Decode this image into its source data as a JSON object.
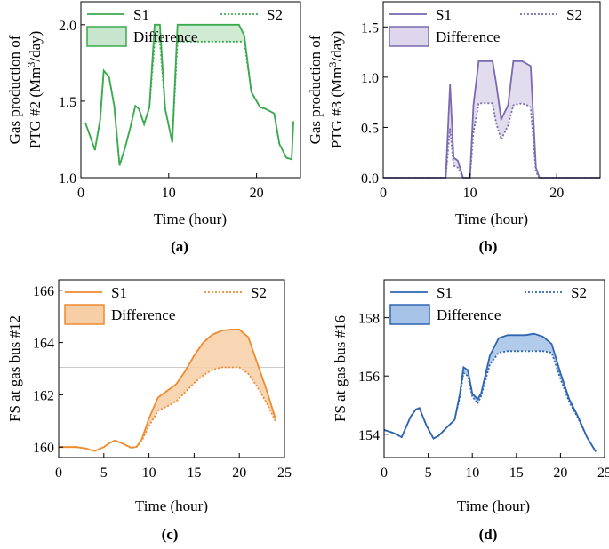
{
  "chart_data": [
    {
      "type": "line",
      "panel": "(a)",
      "ylabel_line1": "Gas production of",
      "ylabel_line2_pre": "PTG #2 (Mm",
      "ylabel_line2_sup": "3",
      "ylabel_line2_post": "/day)",
      "xlabel": "Time (hour)",
      "xlim": [
        0,
        25
      ],
      "ylim": [
        1.0,
        2.15
      ],
      "xticks": [
        0,
        10,
        20
      ],
      "yticks": [
        1.0,
        1.5,
        2.0
      ],
      "ytick_labels": [
        "1.0",
        "1.5",
        "2.0"
      ],
      "color": "#3aaa4e",
      "fill": "#c8e6cd",
      "legend": {
        "s1": "S1",
        "s2": "S2",
        "diff": "Difference"
      },
      "series": [
        {
          "name": "S1",
          "x": [
            0.5,
            1,
            1.6,
            2.2,
            2.6,
            3.2,
            3.8,
            4.4,
            5,
            5.6,
            6.2,
            6.6,
            7.2,
            7.8,
            8.4,
            9,
            9.6,
            10.4,
            11,
            12,
            13,
            14,
            15,
            16,
            17,
            18,
            18.6,
            19.4,
            20.4,
            21,
            22,
            22.6,
            23.4,
            24
          ],
          "y": [
            1.36,
            1.28,
            1.18,
            1.38,
            1.7,
            1.66,
            1.47,
            1.08,
            1.19,
            1.32,
            1.47,
            1.45,
            1.35,
            1.46,
            2.0,
            2.0,
            1.45,
            1.23,
            2.0,
            2.0,
            2.0,
            2.0,
            2.0,
            2.0,
            2.0,
            2.0,
            1.93,
            1.56,
            1.46,
            1.45,
            1.42,
            1.22,
            1.13,
            1.12
          ]
        },
        {
          "name": "S2",
          "x": [
            0.5,
            1,
            1.6,
            2.2,
            2.6,
            3.2,
            3.8,
            4.4,
            5,
            5.6,
            6.2,
            6.6,
            7.2,
            7.8,
            8.4,
            9,
            9.6,
            10.4,
            11,
            12,
            13,
            14,
            15,
            16,
            17,
            18,
            18.6,
            19.4,
            20.4,
            21,
            22,
            22.6,
            23.4,
            24
          ],
          "y": [
            1.36,
            1.28,
            1.18,
            1.38,
            1.7,
            1.66,
            1.47,
            1.08,
            1.19,
            1.32,
            1.47,
            1.45,
            1.35,
            1.46,
            1.89,
            1.89,
            1.45,
            1.23,
            1.89,
            1.89,
            1.89,
            1.89,
            1.89,
            1.89,
            1.89,
            1.89,
            1.89,
            1.56,
            1.46,
            1.45,
            1.42,
            1.22,
            1.13,
            1.12
          ]
        }
      ],
      "tail": {
        "x": [
          23.4,
          24.2
        ],
        "y": [
          1.12,
          1.37
        ]
      }
    },
    {
      "type": "line",
      "panel": "(b)",
      "ylabel_line1": "Gas production of",
      "ylabel_line2_pre": "PTG #3 (Mm",
      "ylabel_line2_sup": "3",
      "ylabel_line2_post": "/day)",
      "xlabel": "Time (hour)",
      "xlim": [
        0,
        25
      ],
      "ylim": [
        0.0,
        1.75
      ],
      "xticks": [
        0,
        10,
        20
      ],
      "yticks": [
        0.0,
        0.5,
        1.0,
        1.5
      ],
      "ytick_labels": [
        "0.0",
        "0.5",
        "1.0",
        "1.5"
      ],
      "color": "#7a6aaf",
      "fill": "#ddd6ec",
      "legend": {
        "s1": "S1",
        "s2": "S2",
        "diff": "Difference"
      },
      "series": [
        {
          "name": "S1",
          "x": [
            0,
            7.2,
            7.7,
            8.1,
            8.6,
            9.2,
            10,
            10.4,
            11,
            12,
            12.6,
            13,
            13.6,
            14.4,
            15,
            16,
            16.6,
            17,
            17.6,
            18,
            25
          ],
          "y": [
            0,
            0,
            0.93,
            0.2,
            0.17,
            0,
            0,
            0.72,
            1.16,
            1.16,
            1.16,
            0.95,
            0.58,
            0.72,
            1.16,
            1.16,
            1.13,
            1.11,
            0.1,
            0,
            0
          ]
        },
        {
          "name": "S2",
          "x": [
            0,
            7.2,
            7.7,
            8.1,
            8.6,
            9.2,
            10,
            10.4,
            11,
            12,
            12.6,
            13,
            13.6,
            14.4,
            15,
            16,
            16.6,
            17,
            17.6,
            18,
            25
          ],
          "y": [
            0,
            0,
            0.49,
            0.12,
            0.1,
            0,
            0,
            0.45,
            0.74,
            0.74,
            0.74,
            0.55,
            0.38,
            0.52,
            0.72,
            0.74,
            0.72,
            0.7,
            0.06,
            0,
            0
          ]
        }
      ]
    },
    {
      "type": "line",
      "panel": "(c)",
      "ylabel_line1": "FS at gas bus #12",
      "xlabel": "Time (hour)",
      "xlim": [
        0,
        25
      ],
      "ylim": [
        159.6,
        166.4
      ],
      "xticks": [
        0,
        5,
        10,
        15,
        20,
        25
      ],
      "yticks": [
        160,
        162,
        164,
        166
      ],
      "ytick_labels": [
        "160",
        "162",
        "164",
        "166"
      ],
      "color": "#ee8a2f",
      "fill": "#f7cfa6",
      "legend": {
        "s1": "S1",
        "s2": "S2",
        "diff": "Difference"
      },
      "series": [
        {
          "name": "S1",
          "x": [
            0,
            1,
            2,
            3,
            4,
            5,
            5.6,
            6.2,
            7,
            8,
            8.6,
            9.2,
            10,
            11,
            12,
            13,
            14,
            15,
            16,
            17,
            18,
            19,
            20,
            21,
            22,
            23,
            24
          ],
          "y": [
            160.0,
            160.0,
            160.0,
            159.95,
            159.85,
            160.0,
            160.15,
            160.25,
            160.15,
            159.98,
            160.0,
            160.3,
            161.1,
            161.9,
            162.15,
            162.4,
            162.9,
            163.5,
            164.0,
            164.3,
            164.45,
            164.5,
            164.5,
            164.2,
            163.2,
            162.2,
            161.1
          ]
        },
        {
          "name": "S2",
          "x": [
            0,
            1,
            2,
            3,
            4,
            5,
            5.6,
            6.2,
            7,
            8,
            8.6,
            9.2,
            10,
            11,
            12,
            13,
            14,
            15,
            16,
            17,
            18,
            19,
            20,
            21,
            22,
            23,
            24
          ],
          "y": [
            160.0,
            160.0,
            160.0,
            159.95,
            159.85,
            160.0,
            160.15,
            160.25,
            160.15,
            159.98,
            160.0,
            160.25,
            160.8,
            161.4,
            161.55,
            161.75,
            162.1,
            162.45,
            162.75,
            162.95,
            163.05,
            163.05,
            163.05,
            162.8,
            162.3,
            161.7,
            161.0
          ]
        }
      ],
      "ref_y": 163.05
    },
    {
      "type": "line",
      "panel": "(d)",
      "ylabel_line1": "FS at gas bus #16",
      "xlabel": "Time (hour)",
      "xlim": [
        0,
        25
      ],
      "ylim": [
        153.2,
        159.3
      ],
      "xticks": [
        0,
        5,
        10,
        15,
        20,
        25
      ],
      "yticks": [
        154,
        156,
        158
      ],
      "ytick_labels": [
        "154",
        "156",
        "158"
      ],
      "color": "#2e64b0",
      "fill": "#a6c2e6",
      "legend": {
        "s1": "S1",
        "s2": "S2",
        "diff": "Difference"
      },
      "series": [
        {
          "name": "S1",
          "x": [
            0,
            1,
            2,
            3,
            3.6,
            4,
            4.8,
            5.6,
            6.2,
            7,
            8,
            8.6,
            9,
            9.5,
            10,
            10.6,
            11,
            12,
            13,
            14,
            15,
            16,
            17,
            18,
            19,
            20,
            21,
            22,
            23,
            24
          ],
          "y": [
            154.15,
            154.05,
            153.9,
            154.6,
            154.85,
            154.9,
            154.3,
            153.85,
            153.95,
            154.2,
            154.5,
            155.4,
            156.3,
            156.2,
            155.4,
            155.2,
            155.4,
            156.7,
            157.3,
            157.4,
            157.4,
            157.4,
            157.45,
            157.35,
            157.1,
            156.1,
            155.2,
            154.6,
            153.9,
            153.4
          ]
        },
        {
          "name": "S2",
          "x": [
            0,
            1,
            2,
            3,
            3.6,
            4,
            4.8,
            5.6,
            6.2,
            7,
            8,
            8.6,
            9,
            9.5,
            10,
            10.6,
            11,
            12,
            13,
            14,
            15,
            16,
            17,
            18,
            19,
            20,
            21,
            22,
            23,
            24
          ],
          "y": [
            154.15,
            154.05,
            153.9,
            154.6,
            154.85,
            154.9,
            154.3,
            153.85,
            153.95,
            154.2,
            154.5,
            155.3,
            156.1,
            156.0,
            155.3,
            155.05,
            155.3,
            156.4,
            156.8,
            156.85,
            156.85,
            156.85,
            156.85,
            156.85,
            156.8,
            155.9,
            155.1,
            154.55,
            153.9,
            153.4
          ]
        }
      ]
    }
  ]
}
